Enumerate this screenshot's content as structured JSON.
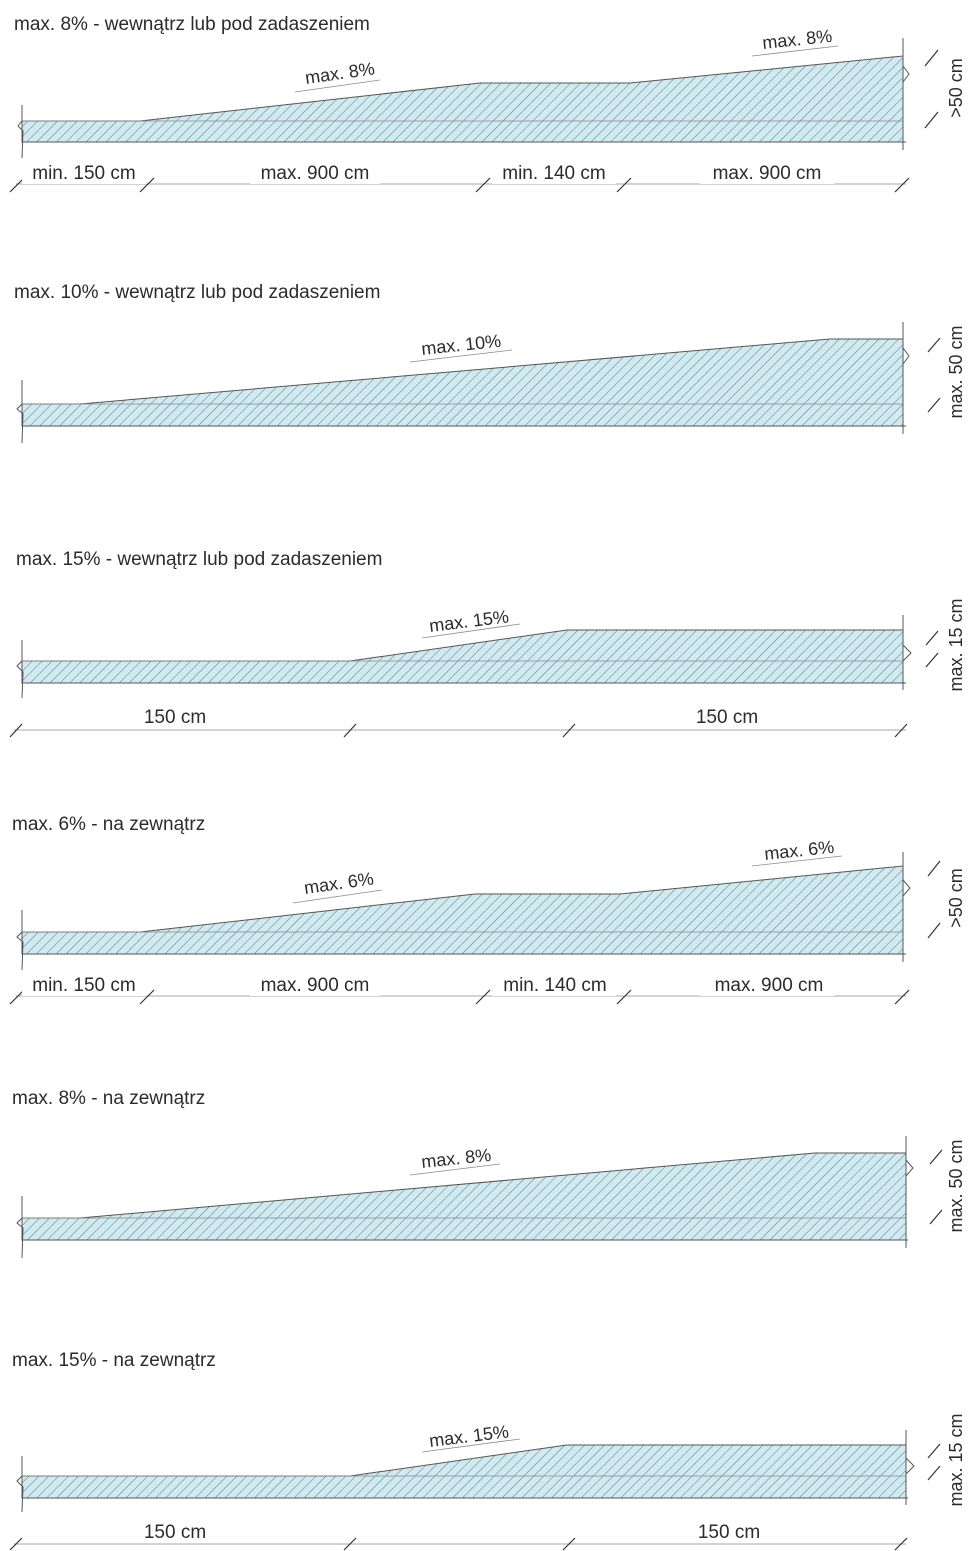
{
  "colors": {
    "fill": "#cfeaf0",
    "hatch": "#5a6a72",
    "line": "#555555",
    "text": "#2b2b2b"
  },
  "diagrams": [
    {
      "title": "max. 8% - wewnątrz lub pod zadaszeniem",
      "slopes": [
        "max. 8%",
        "max. 8%"
      ],
      "height": ">50 cm",
      "dims": [
        "min. 150 cm",
        "max. 900 cm",
        "min. 140 cm",
        "max. 900 cm"
      ]
    },
    {
      "title": "max. 10% - wewnątrz lub pod zadaszeniem",
      "slopes": [
        "max. 10%"
      ],
      "height": "max. 50 cm",
      "dims": []
    },
    {
      "title": "max. 15% - wewnątrz lub pod zadaszeniem",
      "slopes": [
        "max. 15%"
      ],
      "height": "max. 15 cm",
      "dims": [
        "150 cm",
        "150 cm"
      ]
    },
    {
      "title": "max. 6% - na zewnątrz",
      "slopes": [
        "max. 6%",
        "max. 6%"
      ],
      "height": ">50 cm",
      "dims": [
        "min. 150 cm",
        "max. 900 cm",
        "min. 140 cm",
        "max. 900 cm"
      ]
    },
    {
      "title": "max. 8% - na zewnątrz",
      "slopes": [
        "max. 8%"
      ],
      "height": "max. 50 cm",
      "dims": []
    },
    {
      "title": "max. 15% - na zewnątrz",
      "slopes": [
        "max. 15%"
      ],
      "height": "max. 15 cm",
      "dims": [
        "150 cm",
        "150 cm"
      ]
    }
  ]
}
